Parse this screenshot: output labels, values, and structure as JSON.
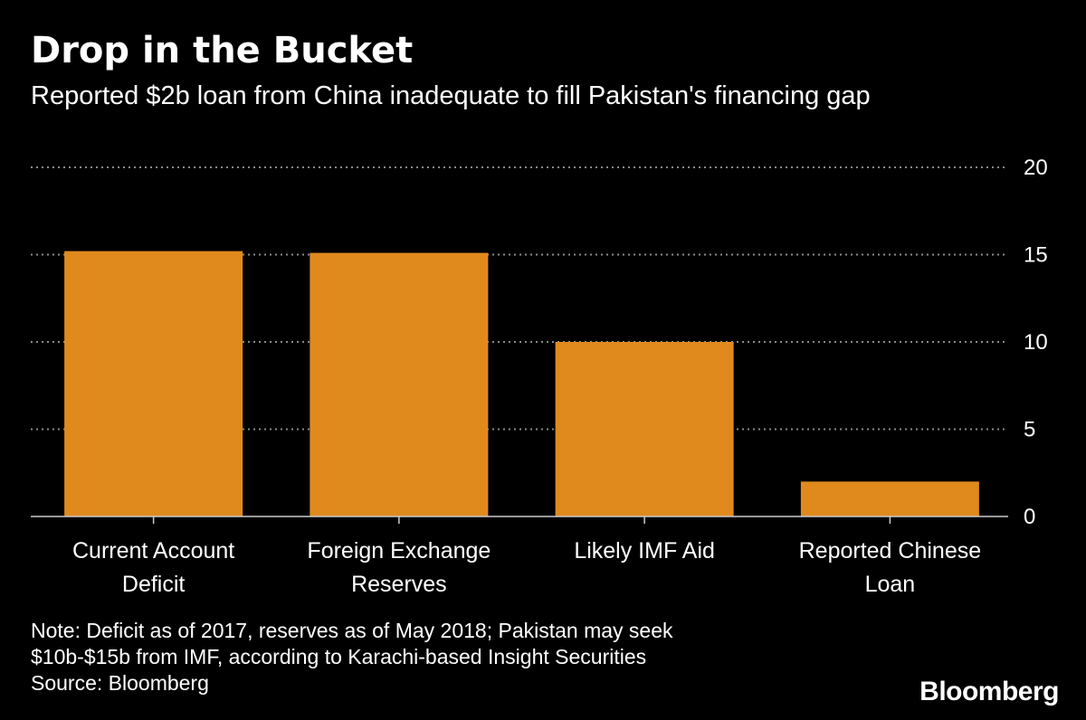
{
  "chart_data": {
    "type": "bar",
    "title": "Drop in the Bucket",
    "subtitle": "Reported $2b loan from China inadequate to fill Pakistan's financing gap",
    "categories": [
      [
        "Current Account",
        "Deficit"
      ],
      [
        "Foreign Exchange",
        "Reserves"
      ],
      [
        "Likely IMF Aid"
      ],
      [
        "Reported Chinese",
        "Loan"
      ]
    ],
    "values": [
      15.2,
      15.1,
      10.0,
      2.0
    ],
    "ylim": [
      0,
      20
    ],
    "yticks": [
      "0",
      "5",
      "10",
      "15",
      "20"
    ],
    "grid": true,
    "bar_color": "#E08A1E",
    "gridline_color": "#8a8a8a"
  },
  "note_lines": [
    "Note: Deficit as of 2017, reserves as of May 2018; Pakistan may seek",
    "$10b-$15b from IMF, according to Karachi-based Insight Securities",
    "Source: Bloomberg"
  ],
  "brand": "Bloomberg"
}
